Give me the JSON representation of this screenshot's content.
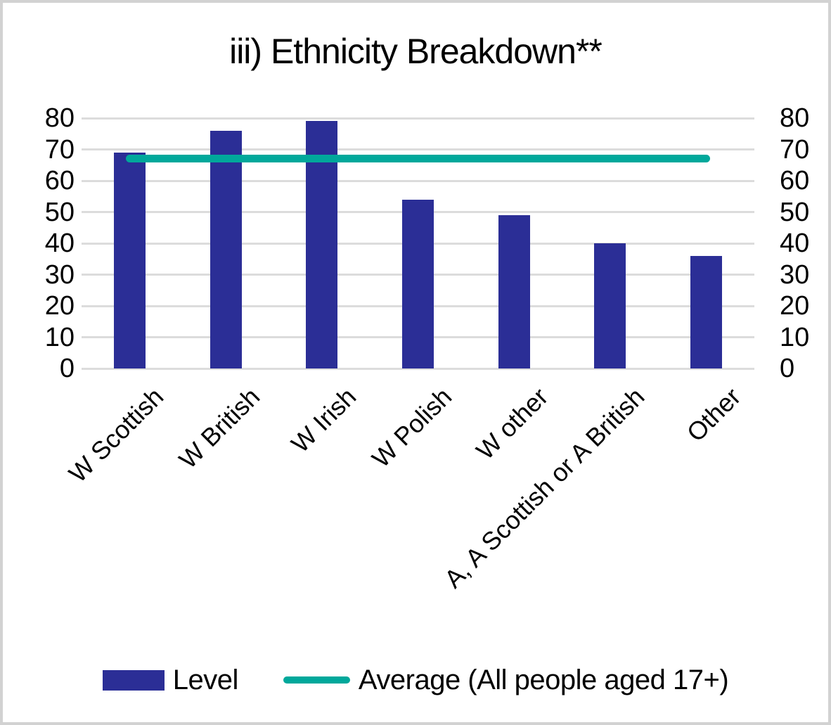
{
  "page": {
    "background_color": "#ffffff",
    "border_color": "#d2d2d2"
  },
  "chart_data": {
    "type": "bar",
    "title": "iii) Ethnicity Breakdown**",
    "categories": [
      "W Scottish",
      "W British",
      "W Irish",
      "W Polish",
      "W other",
      "A, A Scottish or A British",
      "Other"
    ],
    "series": [
      {
        "name": "Level",
        "type": "bar",
        "color": "#2b2e96",
        "values": [
          69,
          76,
          79,
          54,
          49,
          40,
          36
        ]
      },
      {
        "name": "Average (All people aged 17+)",
        "type": "line",
        "color": "#00a89b",
        "value": 67
      }
    ],
    "ylim": [
      0,
      80
    ],
    "yticks": [
      0,
      10,
      20,
      30,
      40,
      50,
      60,
      70,
      80
    ],
    "y_axis_sides": "left and right",
    "grid": "horizontal",
    "gridline_color": "#dcdcdc",
    "xlabel": "",
    "ylabel": "",
    "x_tick_rotation_deg": 45,
    "legend_position": "bottom"
  },
  "legend": {
    "items": [
      {
        "label": "Level",
        "color": "#2b2e96",
        "marker": "bar-swatch"
      },
      {
        "label": "Average (All people aged 17+)",
        "color": "#00a89b",
        "marker": "line-swatch"
      }
    ]
  }
}
